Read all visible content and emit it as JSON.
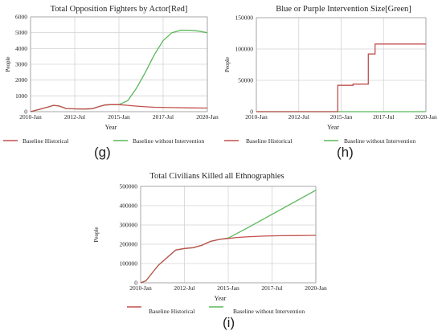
{
  "colors": {
    "historical": "#c0504d",
    "intervention": "#5cb85c",
    "grid": "#d4d4d4",
    "axis": "#999999"
  },
  "panels": [
    {
      "label": "(g)"
    },
    {
      "label": "(h)"
    },
    {
      "label": "(i)"
    }
  ],
  "chart_data": [
    {
      "type": "line",
      "title": "Total Opposition Fighters by Actor[Red]",
      "xlabel": "Year",
      "ylabel": "People",
      "x_ticks": [
        "2010-Jan",
        "2012-Jul",
        "2015-Jan",
        "2017-Jul",
        "2020-Jan"
      ],
      "y_ticks": [
        0,
        1000,
        2000,
        3000,
        4000,
        5000,
        6000
      ],
      "xlim": [
        2010.0,
        2020.0
      ],
      "ylim": [
        0,
        6000
      ],
      "grid": true,
      "legend_position": "bottom",
      "series": [
        {
          "name": "Baseline Historical",
          "x": [
            2010.0,
            2010.5,
            2011.0,
            2011.3,
            2011.6,
            2011.9,
            2012.0,
            2012.5,
            2013.0,
            2013.5,
            2013.8,
            2014.2,
            2014.6,
            2015.0,
            2015.5,
            2016.0,
            2016.5,
            2017.0,
            2018.0,
            2019.0,
            2020.0
          ],
          "y": [
            0,
            150,
            300,
            400,
            360,
            250,
            200,
            180,
            170,
            190,
            300,
            420,
            450,
            440,
            400,
            350,
            310,
            280,
            260,
            240,
            230
          ]
        },
        {
          "name": "Baseline without Intervention",
          "x": [
            2010.0,
            2010.5,
            2011.0,
            2011.3,
            2011.6,
            2011.9,
            2012.0,
            2012.5,
            2013.0,
            2013.5,
            2013.8,
            2014.2,
            2014.6,
            2015.0,
            2015.5,
            2016.0,
            2016.5,
            2017.0,
            2017.5,
            2018.0,
            2018.5,
            2019.0,
            2019.5,
            2020.0
          ],
          "y": [
            0,
            150,
            300,
            400,
            360,
            250,
            200,
            180,
            170,
            190,
            300,
            420,
            450,
            450,
            700,
            1500,
            2500,
            3600,
            4500,
            5000,
            5150,
            5150,
            5100,
            5000
          ]
        }
      ]
    },
    {
      "type": "line",
      "title": "Blue or Purple Intervention Size[Green]",
      "xlabel": "Year",
      "ylabel": "People",
      "x_ticks": [
        "2010-Jan",
        "2012-Jul",
        "2015-Jan",
        "2017-Jul",
        "2020-Jan"
      ],
      "y_ticks": [
        0,
        50000,
        100000,
        150000
      ],
      "xlim": [
        2010.0,
        2020.0
      ],
      "ylim": [
        0,
        150000
      ],
      "grid": true,
      "legend_position": "bottom",
      "series": [
        {
          "name": "Baseline Historical",
          "x": [
            2010.0,
            2014.8,
            2014.8,
            2015.7,
            2015.7,
            2016.6,
            2016.6,
            2017.0,
            2017.0,
            2020.0
          ],
          "y": [
            0,
            0,
            42000,
            42000,
            44000,
            44000,
            92000,
            92000,
            108000,
            108000
          ]
        },
        {
          "name": "Baseline without Intervention",
          "x": [
            2010.0,
            2020.0
          ],
          "y": [
            0,
            0
          ]
        }
      ]
    },
    {
      "type": "line",
      "title": "Total Civilians Killed all Ethnographies",
      "xlabel": "Year",
      "ylabel": "People",
      "x_ticks": [
        "2010-Jan",
        "2012-Jul",
        "2015-Jan",
        "2017-Jul",
        "2020-Jan"
      ],
      "y_ticks": [
        0,
        100000,
        200000,
        300000,
        400000,
        500000
      ],
      "xlim": [
        2010.0,
        2020.0
      ],
      "ylim": [
        0,
        500000
      ],
      "grid": true,
      "legend_position": "bottom",
      "series": [
        {
          "name": "Baseline Historical",
          "x": [
            2010.0,
            2010.3,
            2011.0,
            2012.0,
            2012.5,
            2013.0,
            2013.5,
            2014.0,
            2014.5,
            2015.0,
            2015.5,
            2016.0,
            2017.0,
            2018.0,
            2019.0,
            2020.0
          ],
          "y": [
            0,
            10000,
            90000,
            170000,
            178000,
            182000,
            195000,
            215000,
            225000,
            230000,
            235000,
            238000,
            242000,
            244000,
            245000,
            246000
          ]
        },
        {
          "name": "Baseline without Intervention",
          "x": [
            2010.0,
            2010.3,
            2011.0,
            2012.0,
            2012.5,
            2013.0,
            2013.5,
            2014.0,
            2014.5,
            2015.0,
            2016.0,
            2017.0,
            2018.0,
            2019.0,
            2020.0
          ],
          "y": [
            0,
            10000,
            90000,
            170000,
            178000,
            182000,
            195000,
            215000,
            225000,
            232000,
            280000,
            330000,
            380000,
            430000,
            480000
          ]
        }
      ]
    }
  ]
}
